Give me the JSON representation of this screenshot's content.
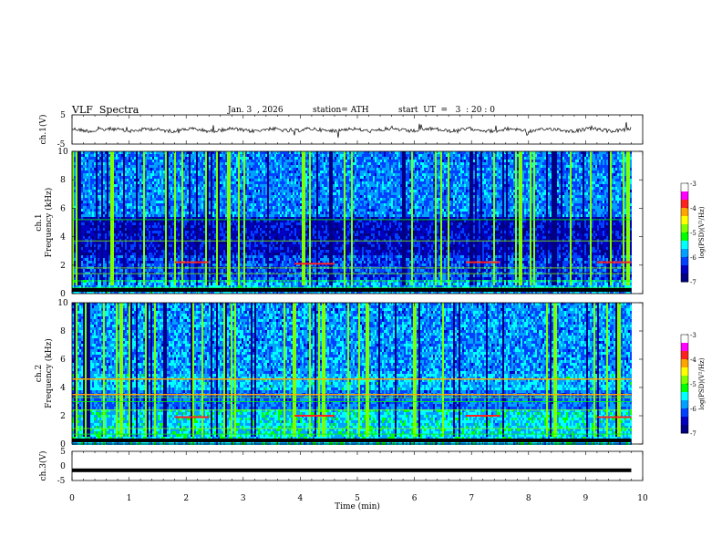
{
  "header": {
    "title": "VLF  Spectra",
    "date": "Jan. 3  , 2026",
    "station": "station= ATH",
    "start": "start  UT  =   3  : 20 : 0"
  },
  "colors": {
    "cmap": [
      "#ffffff",
      "#ff00ff",
      "#ff2020",
      "#ffa500",
      "#ffff00",
      "#7fff00",
      "#00ff00",
      "#00ffff",
      "#00a0ff",
      "#0040ff",
      "#0000c0",
      "#000080",
      "#000000"
    ],
    "ch1_trace": "#000000",
    "ch3_trace": "#000000"
  },
  "chart_data": [
    {
      "type": "line",
      "name": "ch1",
      "ylabel": "ch.1(V)",
      "ylim": [
        -5,
        5
      ],
      "yticks": [
        "5",
        "-5"
      ],
      "xlim": [
        0,
        10
      ],
      "description_of_series": "waveform centered near 0 V with small fluctuations (~±1 V)",
      "baseline_v": 0,
      "amplitude_v": 0.8
    },
    {
      "type": "heatmap",
      "name": "ch1 spectrogram",
      "ylabel_top": "ch.1",
      "ylabel": "Frequency (kHz)",
      "ylim": [
        0,
        10
      ],
      "yticks": [
        "0",
        "2",
        "4",
        "6",
        "8",
        "10"
      ],
      "xlim": [
        0,
        10
      ],
      "colorbar": {
        "label": "log(PSD)(V²/Hz)",
        "range": [
          -7,
          -3
        ],
        "ticks": [
          "-3",
          "-4",
          "-5",
          "-6",
          "-7"
        ]
      },
      "dark_band_khz": [
        2.6,
        5.4
      ],
      "orange_segments": [
        {
          "t0": 1.8,
          "t1": 2.4,
          "f": 2.2
        },
        {
          "t0": 3.9,
          "t1": 4.6,
          "f": 2.1
        },
        {
          "t0": 6.9,
          "t1": 7.5,
          "f": 2.2
        },
        {
          "t0": 9.2,
          "t1": 9.8,
          "f": 2.2
        }
      ],
      "line_khz": [
        0.2,
        0.4,
        0.9,
        1.4,
        1.8,
        3.7,
        5.2
      ]
    },
    {
      "type": "heatmap",
      "name": "ch2 spectrogram",
      "ylabel_top": "ch.2",
      "ylabel": "Frequency (kHz)",
      "ylim": [
        0,
        10
      ],
      "yticks": [
        "0",
        "2",
        "4",
        "6",
        "8",
        "10"
      ],
      "xlim": [
        0,
        10
      ],
      "colorbar": {
        "label": "log(PSD)(V²/Hz)",
        "range": [
          -7,
          -3
        ],
        "ticks": [
          "-3",
          "-4",
          "-5",
          "-6",
          "-7"
        ]
      },
      "orange_lines_khz": [
        3.5,
        4.6
      ],
      "orange_segments": [
        {
          "t0": 1.8,
          "t1": 2.4,
          "f": 1.9
        },
        {
          "t0": 3.9,
          "t1": 4.6,
          "f": 2.0
        },
        {
          "t0": 6.9,
          "t1": 7.5,
          "f": 2.0
        },
        {
          "t0": 9.2,
          "t1": 9.8,
          "f": 1.9
        }
      ],
      "line_khz": [
        0.3,
        0.7,
        1.1,
        2.4,
        3.0,
        3.3
      ]
    },
    {
      "type": "line",
      "name": "ch3",
      "ylabel": "ch.3(V)",
      "ylim": [
        -5,
        5
      ],
      "yticks": [
        "5",
        "0",
        "-5"
      ],
      "xlim": [
        0,
        10
      ],
      "baseline_v": -1.5,
      "amplitude_v": 0.3
    }
  ],
  "xaxis": {
    "label": "Time  (min)",
    "ticks": [
      "0",
      "1",
      "2",
      "3",
      "4",
      "5",
      "6",
      "7",
      "8",
      "9",
      "10"
    ],
    "data_end_min": 9.8
  }
}
